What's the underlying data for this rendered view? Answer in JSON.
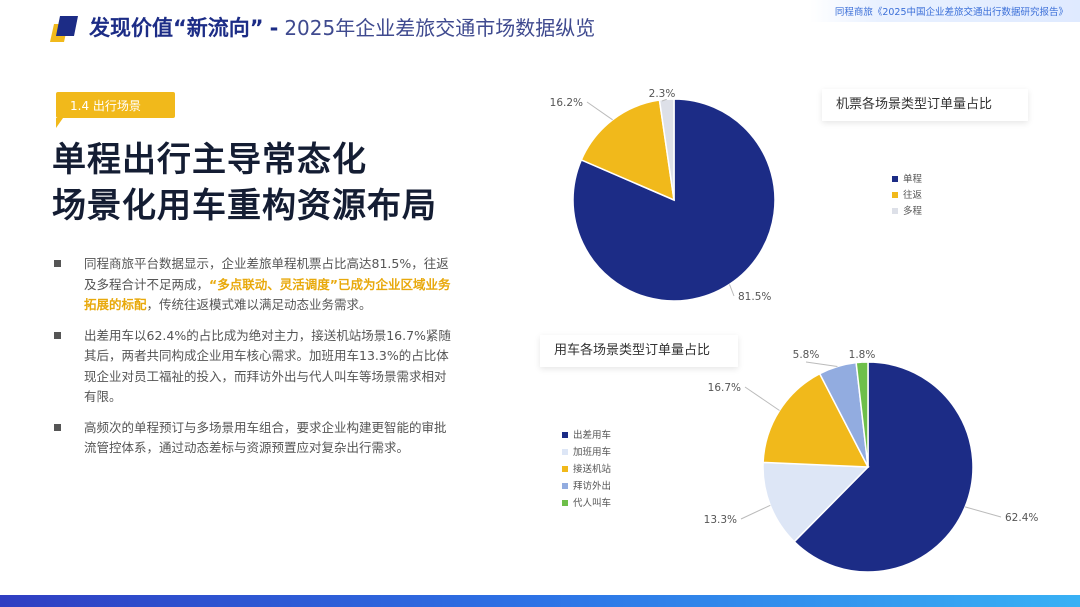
{
  "header": {
    "title_bold": "发现价值“新流向”",
    "separator": "-",
    "title_light": "2025年企业差旅交通市场数据纵览",
    "report_name": "同程商旅《2025中国企业差旅交通出行数据研究报告》"
  },
  "section": {
    "tag": "1.4 出行场景",
    "headline_line1": "单程出行主导常态化",
    "headline_line2": "场景化用车重构资源布局"
  },
  "bullets": [
    {
      "before": "同程商旅平台数据显示，企业差旅单程机票占比高达81.5%，往返及多程合计不足两成，",
      "highlight": "“多点联动、灵活调度”已成为企业区域业务拓展的标配",
      "after": "，传统往返模式难以满足动态业务需求。"
    },
    {
      "before": "出差用车以62.4%的占比成为绝对主力，接送机站场景16.7%紧随其后，两者共同构成企业用车核心需求。加班用车13.3%的占比体现企业对员工福祉的投入，而拜访外出与代人叫车等场景需求相对有限。",
      "highlight": "",
      "after": ""
    },
    {
      "before": "高频次的单程预订与多场景用车组合，要求企业构建更智能的审批流管控体系，通过动态差标与资源预置应对复杂出行需求。",
      "highlight": "",
      "after": ""
    }
  ],
  "colors": {
    "navy": "#1c2c86",
    "yellow": "#f1b91b",
    "light_gray": "#dde0e8",
    "light_blue": "#dde6f6",
    "periwinkle": "#92ace0",
    "green": "#6ebf4a"
  },
  "chart_data": [
    {
      "type": "pie",
      "title": "机票各场景类型订单量占比",
      "categories": [
        "单程",
        "往返",
        "多程"
      ],
      "values": [
        81.5,
        16.2,
        2.3
      ],
      "data_labels": [
        "81.5%",
        "16.2%",
        "2.3%"
      ],
      "colors": [
        "#1c2c86",
        "#f1b91b",
        "#dde0e8"
      ],
      "legend_position": "right"
    },
    {
      "type": "pie",
      "title": "用车各场景类型订单量占比",
      "categories": [
        "出差用车",
        "加班用车",
        "接送机站",
        "拜访外出",
        "代人叫车"
      ],
      "values": [
        62.4,
        13.3,
        16.7,
        5.8,
        1.8
      ],
      "data_labels": [
        "62.4%",
        "13.3%",
        "16.7%",
        "5.8%",
        "1.8%"
      ],
      "colors": [
        "#1c2c86",
        "#dde6f6",
        "#f1b91b",
        "#92ace0",
        "#6ebf4a"
      ],
      "legend_position": "left"
    }
  ]
}
